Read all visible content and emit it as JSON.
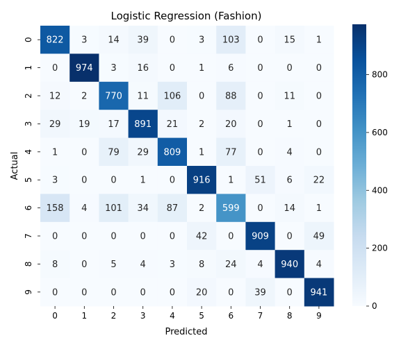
{
  "chart_data": {
    "type": "heatmap",
    "title": "Logistic Regression (Fashion)",
    "xlabel": "Predicted",
    "ylabel": "Actual",
    "x_categories": [
      "0",
      "1",
      "2",
      "3",
      "4",
      "5",
      "6",
      "7",
      "8",
      "9"
    ],
    "y_categories": [
      "0",
      "1",
      "2",
      "3",
      "4",
      "5",
      "6",
      "7",
      "8",
      "9"
    ],
    "matrix": [
      [
        822,
        3,
        14,
        39,
        0,
        3,
        103,
        0,
        15,
        1
      ],
      [
        0,
        974,
        3,
        16,
        0,
        1,
        6,
        0,
        0,
        0
      ],
      [
        12,
        2,
        770,
        11,
        106,
        0,
        88,
        0,
        11,
        0
      ],
      [
        29,
        19,
        17,
        891,
        21,
        2,
        20,
        0,
        1,
        0
      ],
      [
        1,
        0,
        79,
        29,
        809,
        1,
        77,
        0,
        4,
        0
      ],
      [
        3,
        0,
        0,
        1,
        0,
        916,
        1,
        51,
        6,
        22
      ],
      [
        158,
        4,
        101,
        34,
        87,
        2,
        599,
        0,
        14,
        1
      ],
      [
        0,
        0,
        0,
        0,
        0,
        42,
        0,
        909,
        0,
        49
      ],
      [
        8,
        0,
        5,
        4,
        3,
        8,
        24,
        4,
        940,
        4
      ],
      [
        0,
        0,
        0,
        0,
        0,
        20,
        0,
        39,
        0,
        941
      ]
    ],
    "colormap": "Blues",
    "colorbar": {
      "range": [
        0,
        974
      ],
      "ticks": [
        0,
        200,
        400,
        600,
        800
      ],
      "tick_labels": [
        "0",
        "200",
        "400",
        "600",
        "800"
      ]
    },
    "text_color_dark": "#262626",
    "text_color_light": "#ffffff"
  }
}
